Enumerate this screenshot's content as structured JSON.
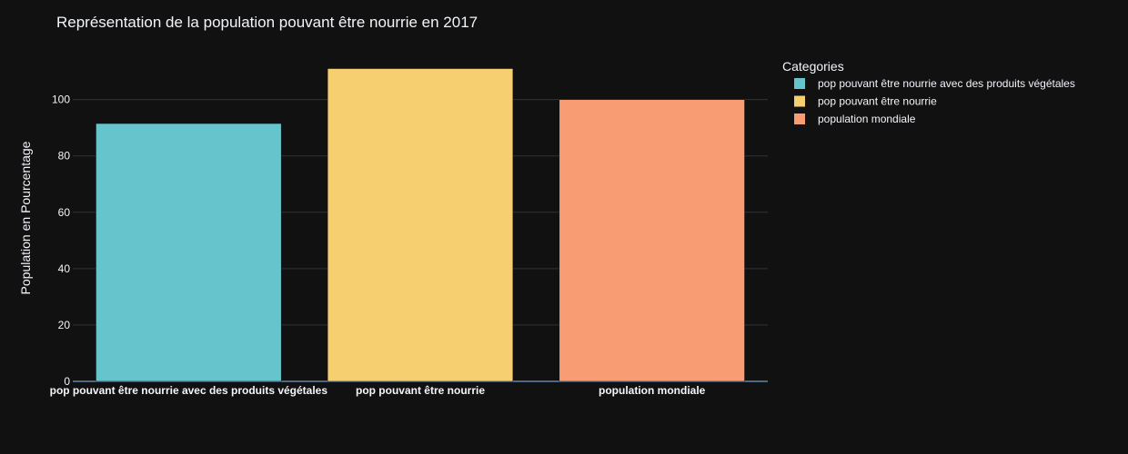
{
  "chart_data": {
    "type": "bar",
    "title": "Représentation de la population pouvant être nourrie en 2017",
    "xlabel": "",
    "ylabel": "Population en Pourcentage",
    "categories": [
      "pop pouvant être nourrie avec des produits végétales",
      "pop pouvant être nourrie",
      "population mondiale"
    ],
    "values": [
      91.5,
      111,
      100
    ],
    "colors": [
      "#66c5cc",
      "#f6cf71",
      "#f89c74"
    ],
    "ylim": [
      0,
      116
    ],
    "yticks": [
      0,
      20,
      40,
      60,
      80,
      100
    ],
    "grid": true,
    "legend": {
      "title": "Categories",
      "placement": "top-right",
      "entries": [
        "pop pouvant être nourrie avec des produits végétales",
        "pop pouvant être nourrie",
        "population mondiale"
      ]
    }
  }
}
